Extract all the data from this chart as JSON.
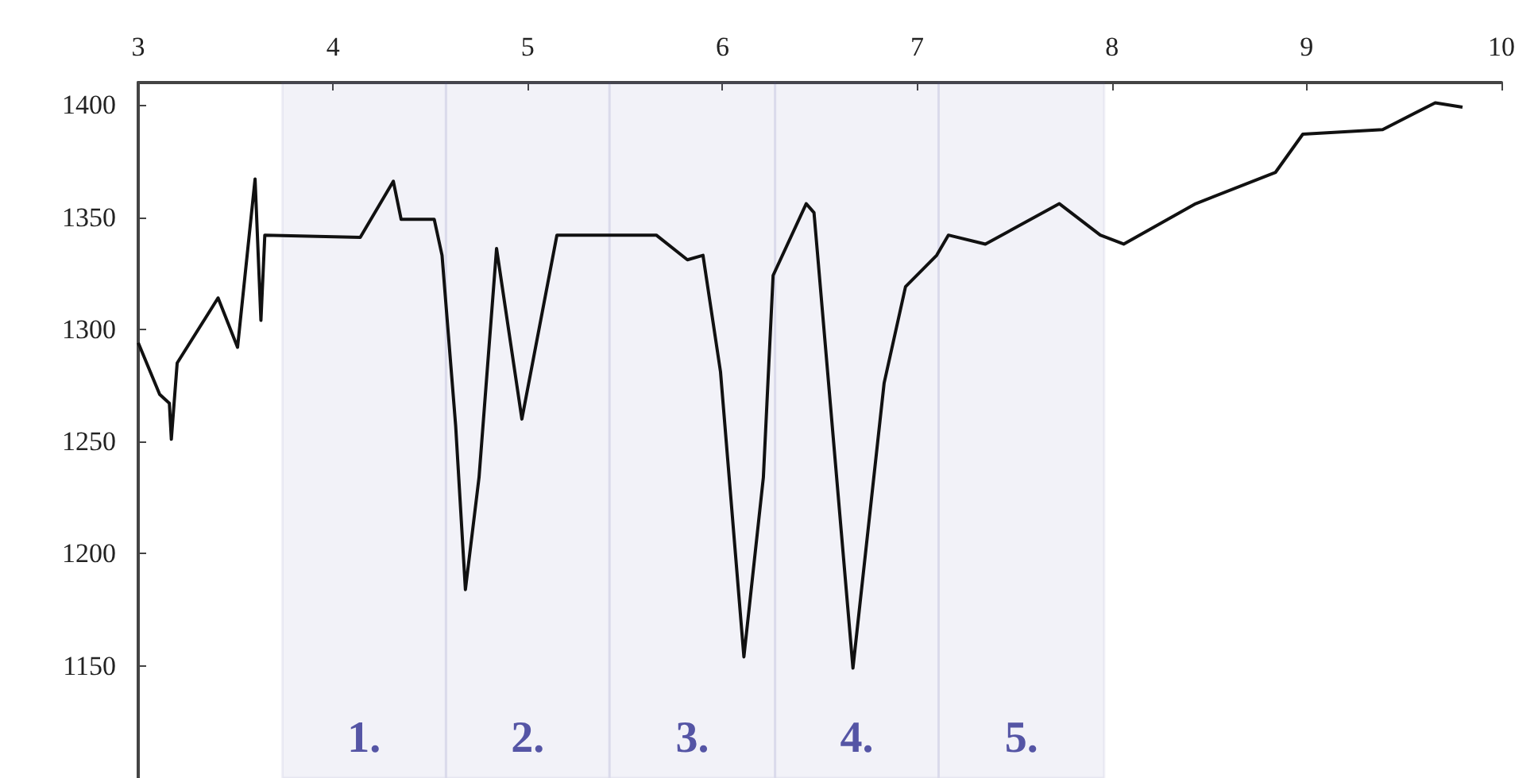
{
  "chart_data": {
    "type": "line",
    "xlim": [
      3,
      10
    ],
    "xticks": [
      3,
      4,
      5,
      6,
      7,
      8,
      9,
      10
    ],
    "ylim": [
      1100,
      1410
    ],
    "yticks": [
      1150,
      1200,
      1250,
      1300,
      1350,
      1400
    ],
    "grid": false,
    "marker": "none",
    "line_style": "solid",
    "series": [
      {
        "color": "#111111",
        "x": [
          3.0,
          3.11,
          3.16,
          3.17,
          3.2,
          3.41,
          3.51,
          3.6,
          3.63,
          3.65,
          4.14,
          4.31,
          4.35,
          4.52,
          4.56,
          4.63,
          4.68,
          4.75,
          4.84,
          4.97,
          5.15,
          5.66,
          5.82,
          5.9,
          5.99,
          6.11,
          6.21,
          6.26,
          6.43,
          6.47,
          6.67,
          6.83,
          6.94,
          7.1,
          7.16,
          7.35,
          7.73,
          7.94,
          8.06,
          8.43,
          8.84,
          8.98,
          9.39,
          9.66,
          9.8
        ],
        "values": [
          1294,
          1271,
          1267,
          1251,
          1285,
          1314,
          1292,
          1367,
          1304,
          1342,
          1341,
          1366,
          1349,
          1349,
          1333,
          1257,
          1184,
          1234,
          1336,
          1260,
          1342,
          1342,
          1331,
          1333,
          1281,
          1154,
          1234,
          1324,
          1356,
          1352,
          1149,
          1276,
          1319,
          1333,
          1342,
          1338,
          1356,
          1342,
          1338,
          1356,
          1370,
          1387,
          1389,
          1401,
          1399
        ]
      }
    ],
    "bands": [
      {
        "axis": "x",
        "from": 3.74,
        "to": 4.58,
        "label": "1.",
        "color": "#5555a5"
      },
      {
        "axis": "x",
        "from": 4.58,
        "to": 5.42,
        "label": "2.",
        "color": "#5555a5"
      },
      {
        "axis": "x",
        "from": 5.42,
        "to": 6.27,
        "label": "3.",
        "color": "#5555a5"
      },
      {
        "axis": "x",
        "from": 6.27,
        "to": 7.11,
        "label": "4.",
        "color": "#5555a5"
      },
      {
        "axis": "x",
        "from": 7.11,
        "to": 7.96,
        "label": "5.",
        "color": "#5555a5"
      }
    ]
  }
}
